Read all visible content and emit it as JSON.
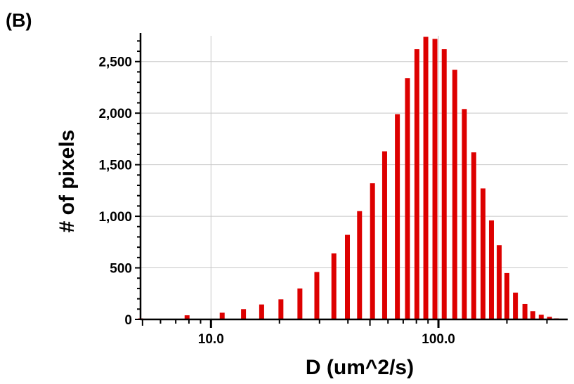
{
  "panel_label": "(B)",
  "chart_data": {
    "type": "bar",
    "xlabel": "D (um^2/s)",
    "ylabel": "# of pixels",
    "x_scale": "log",
    "xlim": [
      4.9,
      370
    ],
    "ylim": [
      0,
      2750
    ],
    "grid": true,
    "x_tick_labels": [
      {
        "value": 10,
        "label": "10.0"
      },
      {
        "value": 100,
        "label": "100.0"
      }
    ],
    "y_tick_labels": [
      {
        "value": 0,
        "label": "0"
      },
      {
        "value": 500,
        "label": "500"
      },
      {
        "value": 1000,
        "label": "1,000"
      },
      {
        "value": 1500,
        "label": "1,500"
      },
      {
        "value": 2000,
        "label": "2,000"
      },
      {
        "value": 2500,
        "label": "2,500"
      }
    ],
    "bar_color": "#dd0000",
    "x": [
      4.9,
      7.85,
      9.1,
      11.2,
      13.9,
      16.7,
      20.3,
      24.6,
      29.2,
      34.7,
      39.8,
      45.0,
      51.3,
      58.0,
      66.0,
      73.1,
      80.4,
      88.0,
      96.5,
      106.0,
      118.0,
      130.0,
      143.0,
      157.0,
      171.0,
      185.0,
      200.0,
      218.0,
      240.0,
      260.0,
      283.0,
      308.0,
      330.0
    ],
    "values": [
      10,
      40,
      5,
      65,
      100,
      145,
      195,
      300,
      460,
      640,
      820,
      1050,
      1320,
      1630,
      1990,
      2340,
      2620,
      2740,
      2720,
      2620,
      2420,
      2040,
      1620,
      1270,
      960,
      720,
      450,
      260,
      150,
      80,
      45,
      25,
      10
    ]
  }
}
